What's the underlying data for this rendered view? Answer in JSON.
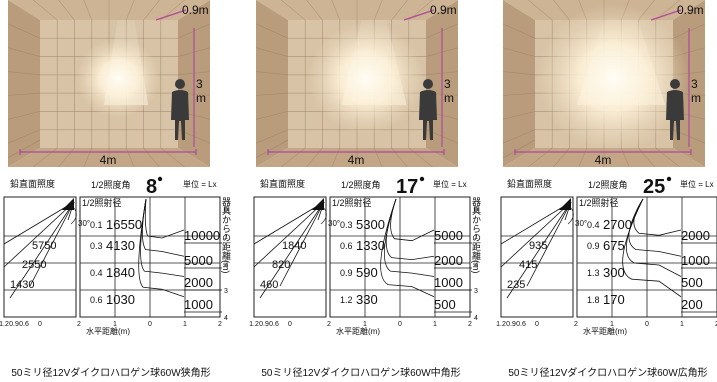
{
  "panels": [
    {
      "id": "narrow",
      "room": {
        "depth_label": "0.9m",
        "height_label": "3m",
        "width_label": "4m"
      },
      "chart": {
        "vertical_illuminance_label": "鉛直面照度",
        "half_angle_label": "1/2照度角",
        "half_angle_value": "8",
        "unit_label": "単位 = Lx",
        "half_diameter_label": "1/2照射径",
        "angle_marker": "30°",
        "vertical_values": [
          "5750",
          "2550",
          "1430"
        ],
        "diameters": [
          "0.1",
          "0.3",
          "0.4",
          "0.6"
        ],
        "center_values": [
          "16550",
          "4130",
          "1840",
          "1030"
        ],
        "contours": [
          "10000",
          "5000",
          "2000",
          "1000"
        ],
        "x_ticks_left": [
          "1.2",
          "0.9",
          "0.6",
          "0"
        ],
        "x_ticks_right": [
          "2",
          "1",
          "0",
          "1",
          "2"
        ],
        "y_ticks": [
          "0",
          "1",
          "2",
          "3",
          "4"
        ],
        "distance_axis_label": "器具からの距離(m)",
        "x_axis_label": "水平距離(m)"
      },
      "caption": "50ミリ径12Vダイクロハロゲン球60W狭角形"
    },
    {
      "id": "medium",
      "room": {
        "depth_label": "0.9m",
        "height_label": "3m",
        "width_label": "4m"
      },
      "chart": {
        "vertical_illuminance_label": "鉛直面照度",
        "half_angle_label": "1/2照度角",
        "half_angle_value": "17",
        "unit_label": "単位 = Lx",
        "half_diameter_label": "1/2照射径",
        "angle_marker": "30°",
        "vertical_values": [
          "1840",
          "820",
          "460"
        ],
        "diameters": [
          "0.3",
          "0.6",
          "0.9",
          "1.2"
        ],
        "center_values": [
          "5300",
          "1330",
          "590",
          "330"
        ],
        "contours": [
          "5000",
          "2000",
          "1000",
          "500"
        ],
        "x_ticks_left": [
          "1.2",
          "0.9",
          "0.6",
          "0"
        ],
        "x_ticks_right": [
          "2",
          "1",
          "0",
          "1",
          "2"
        ],
        "y_ticks": [
          "0",
          "1",
          "2",
          "3",
          "4"
        ],
        "distance_axis_label": "器具からの距離(m)",
        "x_axis_label": "水平距離(m)"
      },
      "caption": "50ミリ径12Vダイクロハロゲン球60W中角形"
    },
    {
      "id": "wide",
      "room": {
        "depth_label": "0.9m",
        "height_label": "3m",
        "width_label": "4m"
      },
      "chart": {
        "vertical_illuminance_label": "鉛直面照度",
        "half_angle_label": "1/2照度角",
        "half_angle_value": "25",
        "unit_label": "単位 = Lx",
        "half_diameter_label": "1/2照射径",
        "angle_marker": "30°",
        "vertical_values": [
          "935",
          "415",
          "235"
        ],
        "diameters": [
          "0.4",
          "0.9",
          "1.3",
          "1.8"
        ],
        "center_values": [
          "2700",
          "675",
          "300",
          "170"
        ],
        "contours": [
          "2000",
          "1000",
          "500",
          "200"
        ],
        "x_ticks_left": [
          "1.2",
          "0.9",
          "0.6",
          "0"
        ],
        "x_ticks_right": [
          "2",
          "1",
          "0",
          "1",
          "2"
        ],
        "y_ticks": [],
        "distance_axis_label": "",
        "x_axis_label": "水平距離(m)"
      },
      "caption": "50ミリ径12Vダイクロハロゲン球60W広角形"
    }
  ],
  "colors": {
    "room_line": "#b04a9a",
    "tile_base": "#d8c3a6",
    "tile_dark": "#8c7258",
    "figure": "#3a3a3a"
  }
}
